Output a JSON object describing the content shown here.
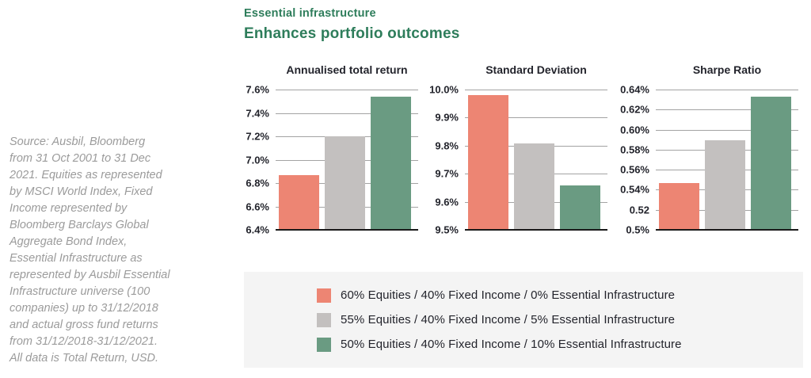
{
  "header": {
    "eyebrow": "Essential infrastructure",
    "title": "Enhances portfolio outcomes"
  },
  "source_note": "Source: Ausbil, Bloomberg\nfrom 31 Oct 2001 to 31 Dec\n2021. Equities as represented\nby MSCI World Index, Fixed\nIncome represented by\nBloomberg Barclays Global\nAggregate Bond Index,\nEssential Infrastructure as\nrepresented by Ausbil Essential\nInfrastructure universe (100\ncompanies) up to 31/12/2018\nand actual gross fund returns\nfrom 31/12/2018-31/12/2021.\nAll data is Total Return, USD.",
  "colors": {
    "accent_green": "#2E7D5B",
    "bar_salmon": "#ED8573",
    "bar_gray": "#C3C0BF",
    "bar_green": "#6A9B82",
    "text_dark": "#23242C",
    "text_gray": "#9B9B9B",
    "gridline_gray": "#A3A3A3",
    "baseline_black": "#1A1A1A",
    "legend_bg": "#F4F4F4"
  },
  "legend": {
    "items": [
      {
        "label": "60% Equities / 40% Fixed Income / 0% Essential Infrastructure",
        "color": "#ED8573"
      },
      {
        "label": "55% Equities / 40% Fixed Income / 5% Essential Infrastructure",
        "color": "#C3C0BF"
      },
      {
        "label": "50% Equities / 40% Fixed Income / 10% Essential Infrastructure",
        "color": "#6A9B82"
      }
    ]
  },
  "chart_data": [
    {
      "type": "bar",
      "title": "Annualised total return",
      "categories": [
        "60% Equities / 40% Fixed Income / 0% Essential Infrastructure",
        "55% Equities / 40% Fixed Income / 5% Essential Infrastructure",
        "50% Equities / 40% Fixed Income / 10% Essential Infrastructure"
      ],
      "values": [
        6.87,
        7.2,
        7.54
      ],
      "unit": "%",
      "ylim": [
        6.4,
        7.6
      ],
      "ytick_labels_top_to_bottom": [
        "7.6%",
        "7.4%",
        "7.2%",
        "7.0%",
        "6.8%",
        "6.6%",
        "6.4%"
      ],
      "bar_colors": [
        "#ED8573",
        "#C3C0BF",
        "#6A9B82"
      ],
      "grid": true,
      "legend_position": "shared-below"
    },
    {
      "type": "bar",
      "title": "Standard Deviation",
      "categories": [
        "60% Equities / 40% Fixed Income / 0% Essential Infrastructure",
        "55% Equities / 40% Fixed Income / 5% Essential Infrastructure",
        "50% Equities / 40% Fixed Income / 10% Essential Infrastructure"
      ],
      "values": [
        9.98,
        9.81,
        9.66
      ],
      "unit": "%",
      "ylim": [
        9.5,
        10.0
      ],
      "ytick_labels_top_to_bottom": [
        "10.0%",
        "9.9%",
        "9.8%",
        "9.7%",
        "9.6%",
        "9.5%"
      ],
      "bar_colors": [
        "#ED8573",
        "#C3C0BF",
        "#6A9B82"
      ],
      "grid": true,
      "legend_position": "shared-below"
    },
    {
      "type": "bar",
      "title": "Sharpe Ratio",
      "categories": [
        "60% Equities / 40% Fixed Income / 0% Essential Infrastructure",
        "55% Equities / 40% Fixed Income / 5% Essential Infrastructure",
        "50% Equities / 40% Fixed Income / 10% Essential Infrastructure"
      ],
      "values": [
        0.547,
        0.59,
        0.633
      ],
      "unit": "",
      "ylim": [
        0.5,
        0.64
      ],
      "ytick_labels_top_to_bottom": [
        "0.64%",
        "0.62%",
        "0.60%",
        "0.58%",
        "0.56%",
        "0.54%",
        "0.52",
        "0.5%"
      ],
      "bar_colors": [
        "#ED8573",
        "#C3C0BF",
        "#6A9B82"
      ],
      "grid": true,
      "legend_position": "shared-below"
    }
  ]
}
